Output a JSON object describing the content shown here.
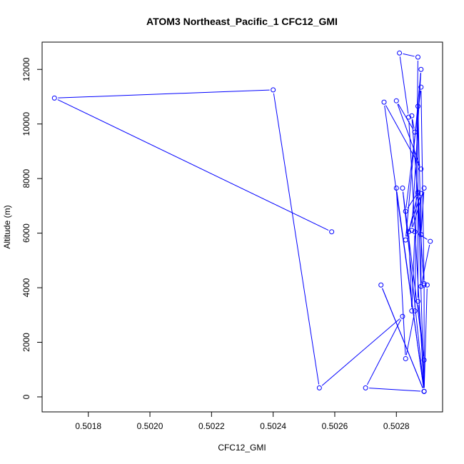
{
  "chart_data": {
    "type": "line",
    "title": "ATOM3 Northeast_Pacific_1 CFC12_GMI",
    "xlabel": "CFC12_GMI",
    "ylabel": "Altitude (m)",
    "xlim": [
      0.50165,
      0.50295
    ],
    "ylim": [
      -550,
      13000
    ],
    "x_ticks": [
      0.5018,
      0.502,
      0.5022,
      0.5024,
      0.5026,
      0.5028
    ],
    "x_tick_labels": [
      "0.5018",
      "0.5020",
      "0.5022",
      "0.5024",
      "0.5026",
      "0.5028"
    ],
    "y_ticks": [
      0,
      2000,
      4000,
      6000,
      8000,
      10000,
      12000
    ],
    "y_tick_labels": [
      "0",
      "2000",
      "4000",
      "6000",
      "8000",
      "10000",
      "12000"
    ],
    "grid": false,
    "series_color": "#0000ff",
    "series": [
      {
        "x": [
          0.50259,
          0.50169,
          0.5024,
          0.50255,
          0.50282,
          0.5027,
          0.50289,
          0.50275,
          0.50289,
          0.5028,
          0.50283,
          0.50286,
          0.50287,
          0.50281,
          0.50284,
          0.50289,
          0.50289,
          0.50288,
          0.50283,
          0.50287,
          0.50289,
          0.50285,
          0.50286,
          0.5028,
          0.50288,
          0.50276,
          0.50289,
          0.50282,
          0.50289,
          0.50287,
          0.50287,
          0.50288,
          0.50289,
          0.50285,
          0.50288,
          0.50283,
          0.50288,
          0.50288,
          0.50291,
          0.50286,
          0.50285,
          0.50284,
          0.50287,
          0.50289,
          0.5029
        ],
        "y": [
          6050,
          10950,
          11250,
          330,
          2950,
          330,
          200,
          4100,
          200,
          7650,
          1400,
          3150,
          12450,
          12600,
          10250,
          200,
          4150,
          11350,
          6800,
          7500,
          4100,
          10300,
          9700,
          10850,
          8350,
          10800,
          200,
          7650,
          1350,
          3500,
          10650,
          5950,
          7650,
          6100,
          12000,
          5750,
          7450,
          4050,
          5700,
          6050,
          3150,
          6050,
          7450,
          200,
          4100
        ]
      }
    ]
  }
}
